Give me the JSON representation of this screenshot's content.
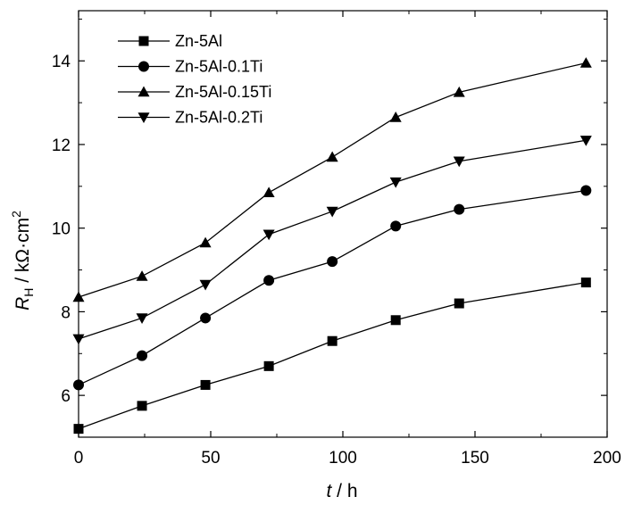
{
  "chart_data": {
    "type": "line",
    "xlabel": "t / h",
    "ylabel": "R_H / kΩ·cm²",
    "xlim": [
      0,
      200
    ],
    "ylim": [
      5,
      15.2
    ],
    "x_ticks": [
      0,
      50,
      100,
      150,
      200
    ],
    "y_ticks": [
      6,
      8,
      10,
      12,
      14
    ],
    "grid": false,
    "legend_position": "top-left",
    "x": [
      0,
      24,
      48,
      72,
      96,
      120,
      144,
      192
    ],
    "series": [
      {
        "name": "Zn-5Al",
        "marker": "square",
        "values": [
          5.2,
          5.75,
          6.25,
          6.7,
          7.3,
          7.8,
          8.2,
          8.7
        ]
      },
      {
        "name": "Zn-5Al-0.1Ti",
        "marker": "circle",
        "values": [
          6.25,
          6.95,
          7.85,
          8.75,
          9.2,
          10.05,
          10.45,
          10.9
        ]
      },
      {
        "name": "Zn-5Al-0.15Ti",
        "marker": "triangle-up",
        "values": [
          8.35,
          8.85,
          9.65,
          10.85,
          11.7,
          12.65,
          13.25,
          13.95
        ]
      },
      {
        "name": "Zn-5Al-0.2Ti",
        "marker": "triangle-down",
        "values": [
          7.35,
          7.85,
          8.65,
          9.85,
          10.4,
          11.1,
          11.6,
          12.1
        ]
      }
    ]
  },
  "axis_title": {
    "y_main": "R",
    "y_sub": "H",
    "y_unit": " / kΩ·cm",
    "y_sup": "2",
    "x_main": "t",
    "x_unit": " / h"
  }
}
